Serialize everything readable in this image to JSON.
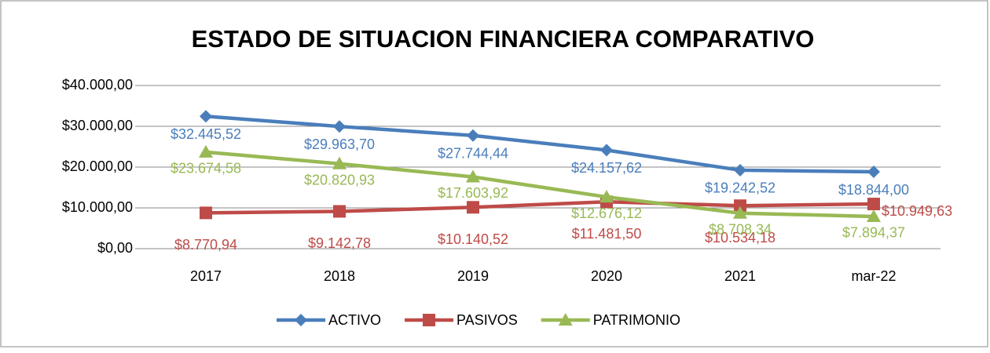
{
  "chart_data": {
    "type": "line",
    "title": "ESTADO DE SITUACION FINANCIERA COMPARATIVO",
    "categories": [
      "2017",
      "2018",
      "2019",
      "2020",
      "2021",
      "mar-22"
    ],
    "series": [
      {
        "name": "ACTIVO",
        "color": "#4a7ebb",
        "marker": "diamond",
        "values": [
          32445.52,
          29963.7,
          27744.44,
          24157.62,
          19242.52,
          18844.0
        ],
        "value_labels": [
          "$32.445,52",
          "$29.963,70",
          "$27.744,44",
          "$24.157,62",
          "$19.242,52",
          "$18.844,00"
        ]
      },
      {
        "name": "PASIVOS",
        "color": "#be4b48",
        "marker": "square",
        "values": [
          8770.94,
          9142.78,
          10140.52,
          11481.5,
          10534.18,
          10949.63
        ],
        "value_labels": [
          "$8.770,94",
          "$9.142,78",
          "$10.140,52",
          "$11.481,50",
          "$10.534,18",
          "$10.949,63"
        ]
      },
      {
        "name": "PATRIMONIO",
        "color": "#98b954",
        "marker": "triangle",
        "values": [
          23674.58,
          20820.93,
          17603.92,
          12676.12,
          8708.34,
          7894.37
        ],
        "value_labels": [
          "$23.674,58",
          "$20.820,93",
          "$17.603,92",
          "$12.676,12",
          "$8.708,34",
          "$7.894,37"
        ]
      }
    ],
    "ylim": [
      0,
      40000
    ],
    "yticks": [
      {
        "value": 0,
        "label": "$0,00"
      },
      {
        "value": 10000,
        "label": "$10.000,00"
      },
      {
        "value": 20000,
        "label": "$20.000,00"
      },
      {
        "value": 30000,
        "label": "$30.000,00"
      },
      {
        "value": 40000,
        "label": "$40.000,00"
      }
    ],
    "grid": true,
    "legend": "bottom"
  }
}
